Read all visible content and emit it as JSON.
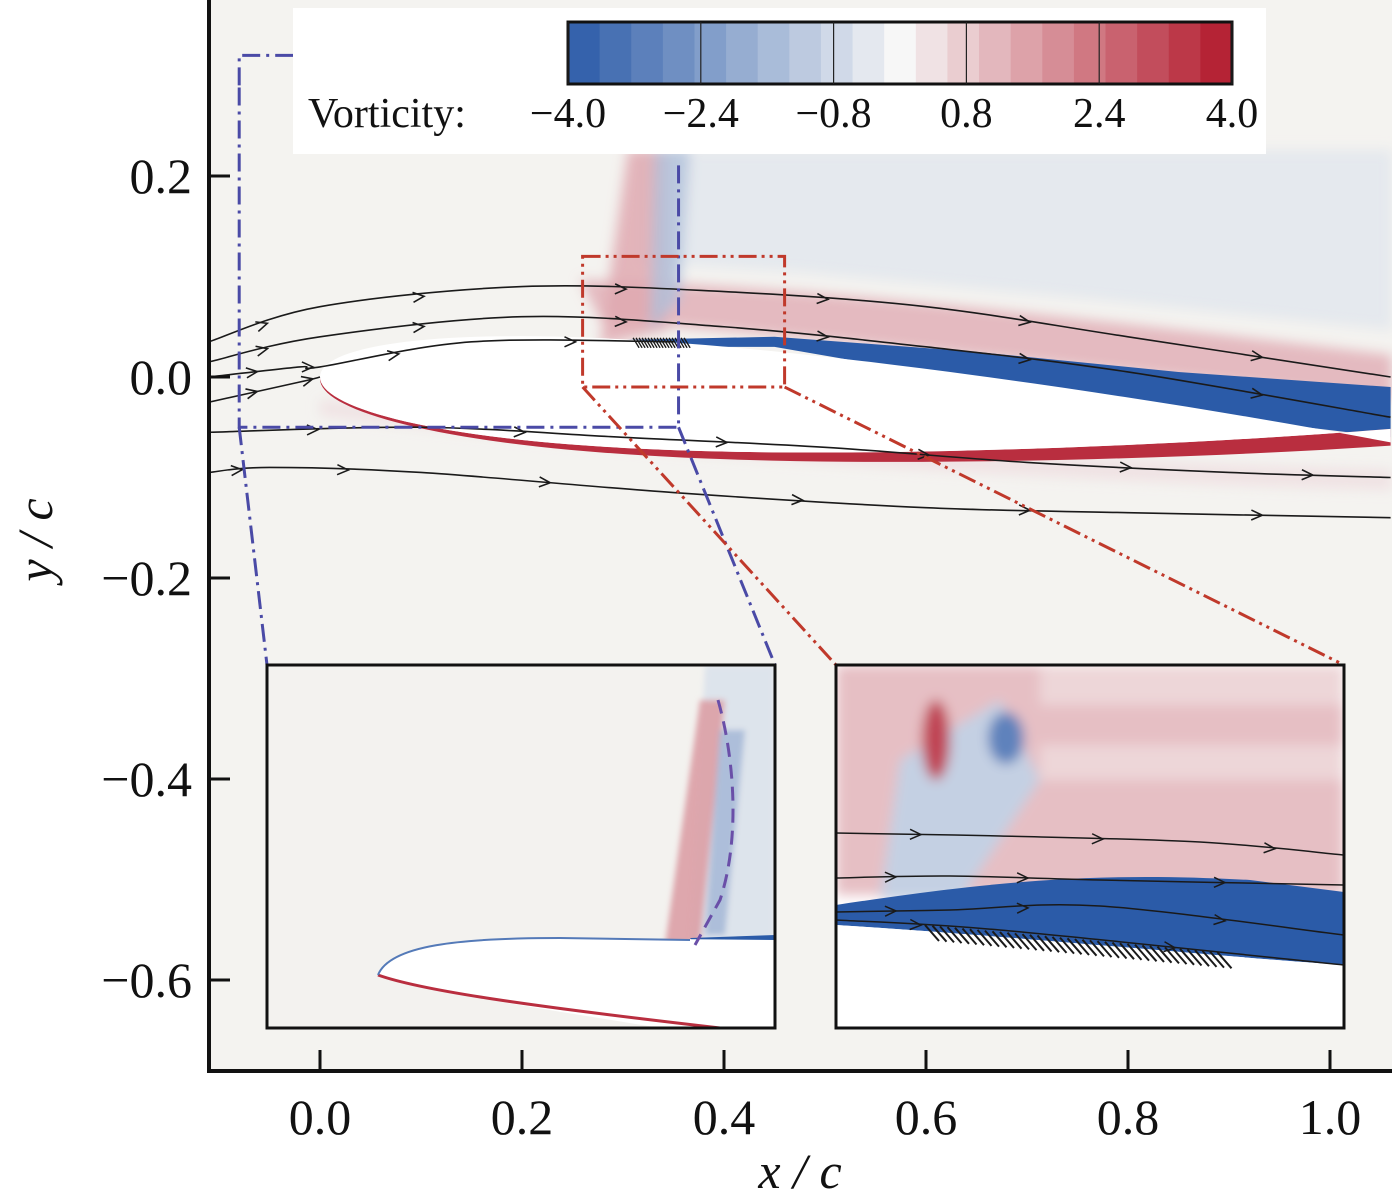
{
  "chart_data": {
    "type": "heatmap",
    "xlabel": "x / c",
    "ylabel": "y / c",
    "xlim": [
      -0.11,
      1.06
    ],
    "ylim": [
      -0.69,
      0.37
    ],
    "x_ticks": [
      {
        "value": 0.0,
        "label": "0.0"
      },
      {
        "value": 0.2,
        "label": "0.2"
      },
      {
        "value": 0.4,
        "label": "0.4"
      },
      {
        "value": 0.6,
        "label": "0.6"
      },
      {
        "value": 0.8,
        "label": "0.8"
      },
      {
        "value": 1.0,
        "label": "1.0"
      }
    ],
    "y_ticks": [
      {
        "value": 0.2,
        "label": "0.2"
      },
      {
        "value": 0.0,
        "label": "0.0"
      },
      {
        "value": -0.2,
        "label": "−0.2"
      },
      {
        "value": -0.4,
        "label": "−0.4"
      },
      {
        "value": -0.6,
        "label": "−0.6"
      }
    ],
    "colorbar": {
      "title": "Vorticity:",
      "range": [
        -4.0,
        4.0
      ],
      "levels": 21,
      "ticks": [
        {
          "value": -4.0,
          "label": "−4.0"
        },
        {
          "value": -2.4,
          "label": "−2.4"
        },
        {
          "value": -0.8,
          "label": "−0.8"
        },
        {
          "value": 0.8,
          "label": "0.8"
        },
        {
          "value": 2.4,
          "label": "2.4"
        },
        {
          "value": 4.0,
          "label": "4.0"
        }
      ],
      "low_color": "#2b5ba8",
      "mid_color": "#f7f7f7",
      "high_color": "#b2182b"
    },
    "field_features": {
      "airfoil_leading_edge": [
        0.0,
        0.0
      ],
      "suction_side_separated_shear_layer": {
        "x_range": [
          0.27,
          1.06
        ],
        "sign": "negative"
      },
      "pressure_side_boundary_layer": {
        "x_range": [
          0.0,
          1.06
        ],
        "sign": "positive"
      },
      "shock_region_x": 0.33
    },
    "streamlines": [
      [
        [
          -0.11,
          0.035
        ],
        [
          0.0,
          0.07
        ],
        [
          0.2,
          0.09
        ],
        [
          0.4,
          0.085
        ],
        [
          0.6,
          0.07
        ],
        [
          0.8,
          0.04
        ],
        [
          1.06,
          0.0
        ]
      ],
      [
        [
          -0.11,
          0.015
        ],
        [
          0.0,
          0.04
        ],
        [
          0.2,
          0.06
        ],
        [
          0.4,
          0.05
        ],
        [
          0.6,
          0.03
        ],
        [
          0.8,
          0.005
        ],
        [
          1.06,
          -0.04
        ]
      ],
      [
        [
          -0.11,
          0.0
        ],
        [
          -0.02,
          0.01
        ],
        [
          0.0,
          0.01
        ],
        [
          0.15,
          0.035
        ],
        [
          0.35,
          0.035
        ]
      ],
      [
        [
          -0.11,
          -0.025
        ],
        [
          -0.02,
          -0.005
        ],
        [
          0.0,
          0.0
        ]
      ],
      [
        [
          -0.11,
          -0.055
        ],
        [
          0.1,
          -0.05
        ],
        [
          0.3,
          -0.06
        ],
        [
          0.5,
          -0.07
        ],
        [
          0.7,
          -0.085
        ],
        [
          0.9,
          -0.095
        ],
        [
          1.06,
          -0.1
        ]
      ],
      [
        [
          -0.11,
          -0.095
        ],
        [
          -0.05,
          -0.09
        ],
        [
          0.1,
          -0.095
        ],
        [
          0.35,
          -0.115
        ],
        [
          0.6,
          -0.13
        ],
        [
          0.8,
          -0.135
        ],
        [
          1.06,
          -0.14
        ]
      ]
    ],
    "zoom_boxes": [
      {
        "name": "leading-edge",
        "x_range": [
          -0.08,
          0.355
        ],
        "y_range": [
          -0.05,
          0.32
        ],
        "style": "dash-dot",
        "color": "#4a4aa6"
      },
      {
        "name": "shock-foot",
        "x_range": [
          0.26,
          0.46
        ],
        "y_range": [
          -0.01,
          0.12
        ],
        "style": "dash-dot-dot",
        "color": "#c0392b"
      }
    ]
  }
}
